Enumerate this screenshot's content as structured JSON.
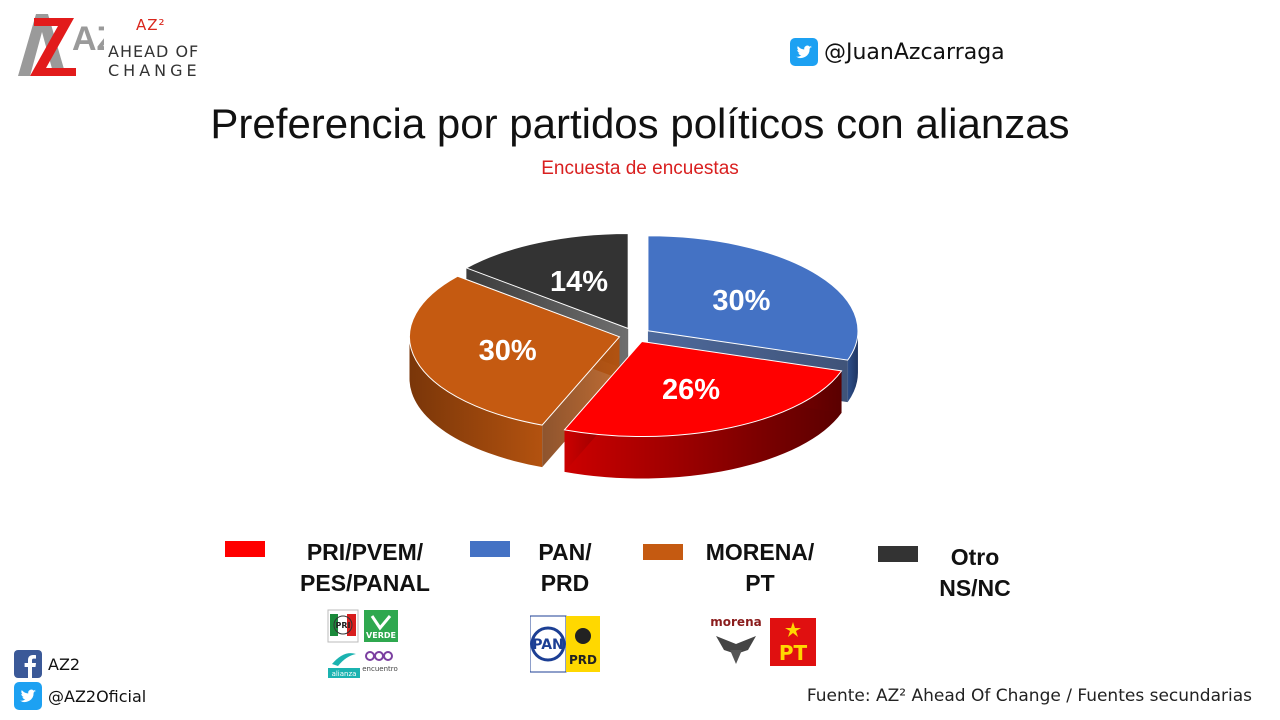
{
  "brand": {
    "logo_mark": "AZ2",
    "superscript": "AZ²",
    "line1": "AHEAD OF",
    "line2": "CHANGE"
  },
  "twitter_top": "@JuanAzcarraga",
  "title": "Preferencia por partidos políticos con alianzas",
  "subtitle": "Encuesta de encuestas",
  "chart_data": {
    "type": "pie",
    "style": "3d-exploded",
    "slices": [
      {
        "label_lines": [
          "PAN/",
          "PRD"
        ],
        "value": 30,
        "display": "30%",
        "color": "#4472c4"
      },
      {
        "label_lines": [
          "PRI/PVEM/",
          "PES/PANAL"
        ],
        "value": 26,
        "display": "26%",
        "color": "#ff0000"
      },
      {
        "label_lines": [
          "MORENA/",
          "PT"
        ],
        "value": 30,
        "display": "30%",
        "color": "#c55a11"
      },
      {
        "label_lines": [
          "Otro",
          "NS/NC"
        ],
        "value": 14,
        "display": "14%",
        "color": "#333333"
      }
    ],
    "legend_position": "bottom"
  },
  "party_logos": {
    "pri_group": [
      "PRI",
      "VERDE",
      "alianza",
      "encuentro"
    ],
    "pan_group": [
      "PAN",
      "PRD"
    ],
    "morena_group": [
      "morena",
      "PT"
    ]
  },
  "social": {
    "facebook": "AZ2",
    "twitter": "@AZ2Oficial"
  },
  "source": "Fuente: AZ² Ahead Of Change / Fuentes secundarias",
  "colors": {
    "accent_red": "#d92020",
    "twitter_blue": "#1da1f2",
    "facebook_blue": "#3b5998"
  }
}
